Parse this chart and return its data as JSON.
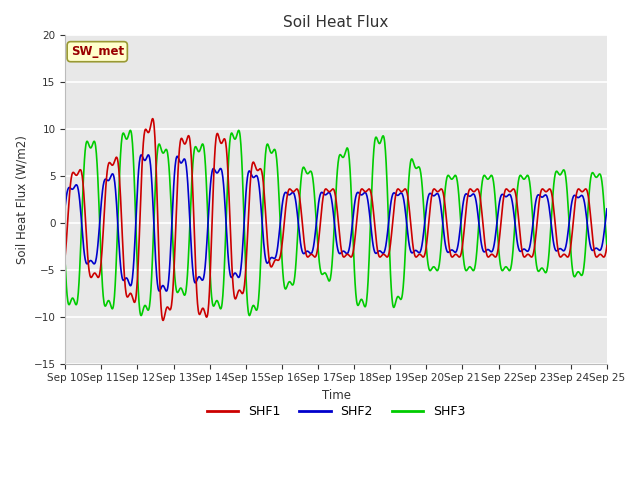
{
  "title": "Soil Heat Flux",
  "ylabel": "Soil Heat Flux (W/m2)",
  "xlabel": "Time",
  "ylim": [
    -15,
    20
  ],
  "yticks": [
    -15,
    -10,
    -5,
    0,
    5,
    10,
    15,
    20
  ],
  "xtick_labels": [
    "Sep 10",
    "Sep 11",
    "Sep 12",
    "Sep 13",
    "Sep 14",
    "Sep 15",
    "Sep 16",
    "Sep 17",
    "Sep 18",
    "Sep 19",
    "Sep 20",
    "Sep 21",
    "Sep 22",
    "Sep 23",
    "Sep 24",
    "Sep 25"
  ],
  "shf1_color": "#cc0000",
  "shf2_color": "#0000cc",
  "shf3_color": "#00cc00",
  "plot_bg_color": "#e8e8e8",
  "grid_color": "#ffffff",
  "annotation_text": "SW_met",
  "annotation_color": "#990000",
  "annotation_bg": "#ffffcc",
  "annotation_border": "#999933",
  "legend_labels": [
    "SHF1",
    "SHF2",
    "SHF3"
  ]
}
